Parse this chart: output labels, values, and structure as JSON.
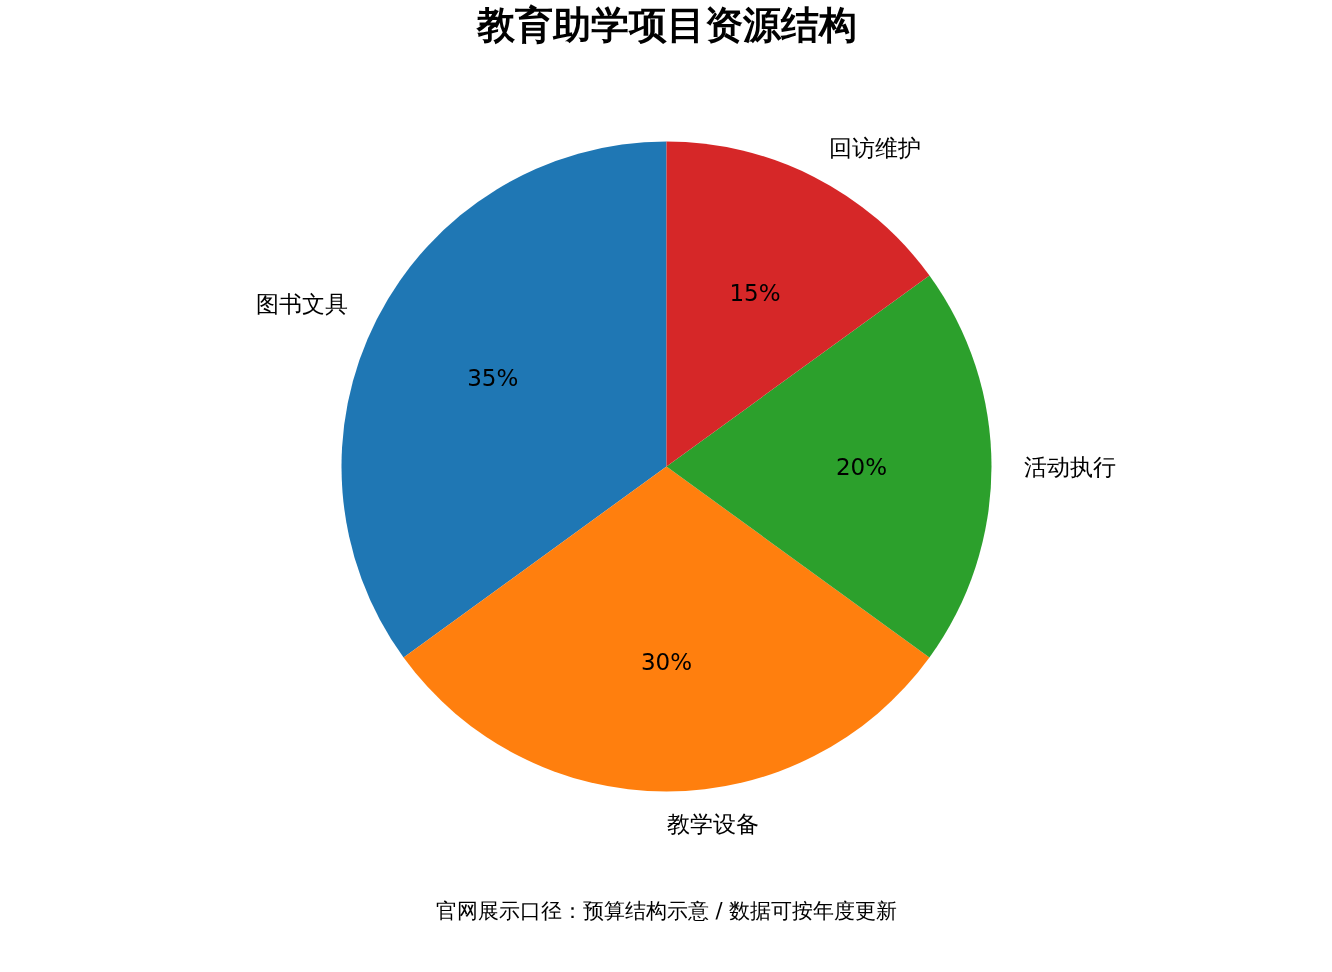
{
  "chart_data": {
    "type": "pie",
    "title": "教育助学项目资源结构",
    "categories": [
      "图书文具",
      "教学设备",
      "活动执行",
      "回访维护"
    ],
    "values": [
      35,
      30,
      20,
      15
    ],
    "colors": [
      "#1f77b4",
      "#ff7f0e",
      "#2ca02c",
      "#d62728"
    ],
    "value_labels": [
      "35%",
      "30%",
      "20%",
      "15%"
    ],
    "annotations": [
      "官网展示口径：预算结构示意 / 数据可按年度更新"
    ]
  }
}
